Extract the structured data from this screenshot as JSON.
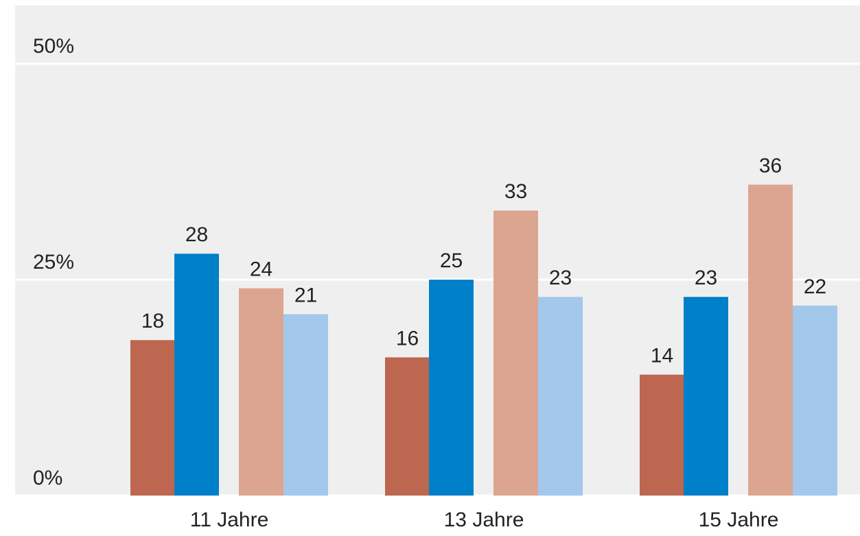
{
  "chart_data": {
    "type": "bar",
    "categories": [
      "11 Jahre",
      "13 Jahre",
      "15 Jahre"
    ],
    "series": [
      {
        "color": "#bd6650",
        "values": [
          18,
          16,
          14
        ]
      },
      {
        "color": "#0080c8",
        "values": [
          28,
          25,
          23
        ]
      },
      {
        "color": "#dca590",
        "values": [
          24,
          33,
          36
        ]
      },
      {
        "color": "#a3c8ec",
        "values": [
          21,
          23,
          22
        ]
      }
    ],
    "ylim": [
      0,
      50
    ],
    "yticks": [
      {
        "value": 0,
        "label": "0%"
      },
      {
        "value": 25,
        "label": "25%"
      },
      {
        "value": 50,
        "label": "50%"
      }
    ],
    "grid": true
  }
}
